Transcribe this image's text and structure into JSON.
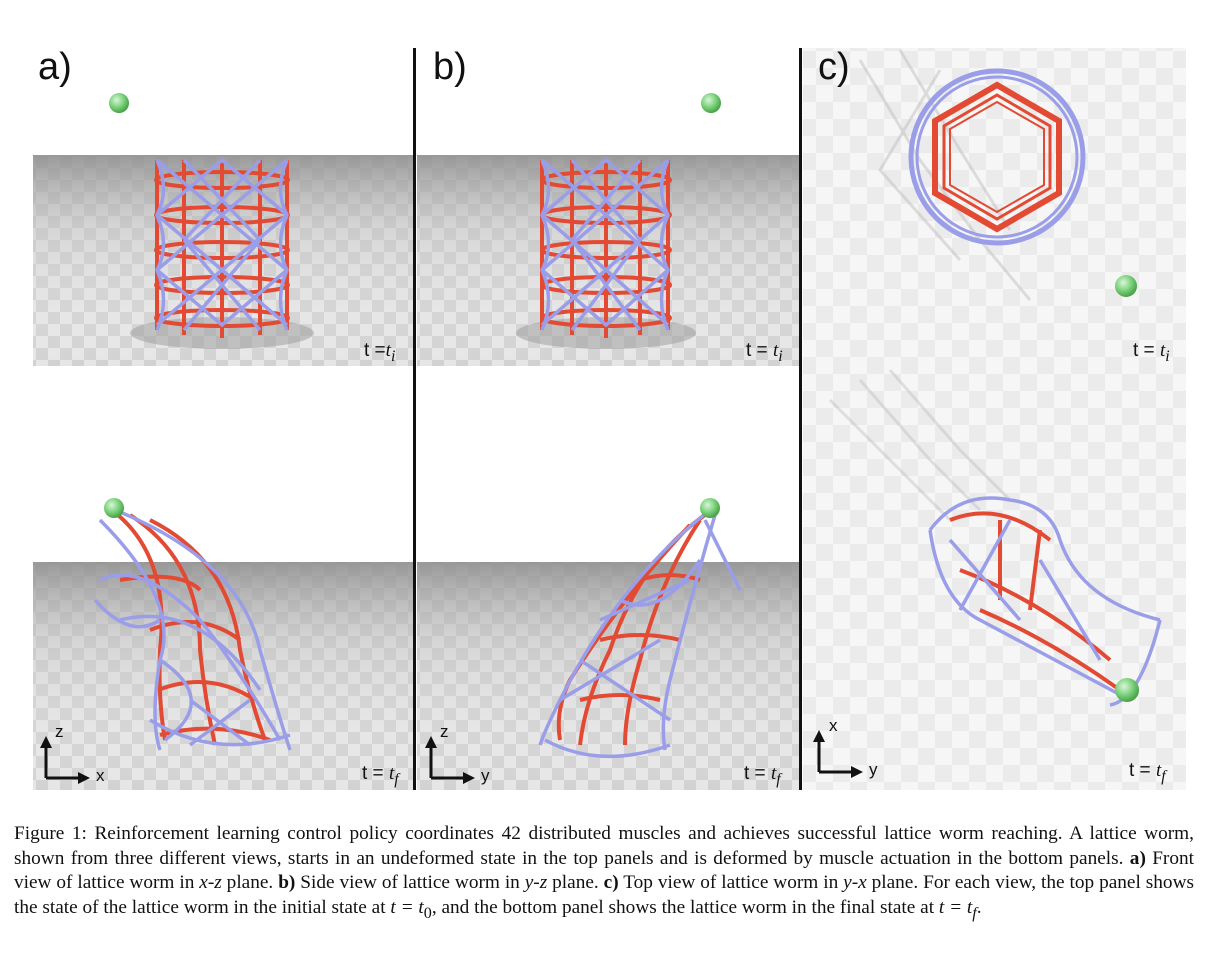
{
  "panels": [
    {
      "label": "a)",
      "top_state": "t =",
      "top_sub": "i",
      "bottom_state": "t = ",
      "bottom_sub": "f",
      "axis_h": "x",
      "axis_v": "z"
    },
    {
      "label": "b)",
      "top_state": "t = ",
      "top_sub": "i",
      "bottom_state": "t = ",
      "bottom_sub": "f",
      "axis_h": "y",
      "axis_v": "z"
    },
    {
      "label": "c)",
      "top_state": "t = ",
      "top_sub": "i",
      "bottom_state": "t = ",
      "bottom_sub": "f",
      "axis_h": "y",
      "axis_v": "x"
    }
  ],
  "caption": {
    "figure_label": "Figure 1:",
    "sentence1": " Reinforcement learning control policy coordinates 42 distributed muscles and achieves successful lattice worm reaching. A lattice worm, shown from three different views, starts in an undeformed state in the top panels and is deformed by muscle actuation in the bottom panels. ",
    "a_label": "a)",
    "a_text": " Front view of lattice worm in ",
    "a_plane": "x-z",
    "a_end": " plane. ",
    "b_label": "b)",
    "b_text": " Side view of lattice worm in ",
    "b_plane": "y-z",
    "b_end": " plane. ",
    "c_label": "c)",
    "c_text": " Top view of lattice worm in ",
    "c_plane": "y-x",
    "c_end": " plane. For each view, the top panel shows the state of the lattice worm in the initial state at ",
    "t0": "t = t",
    "t0_sub": "0",
    "mid": ", and the bottom panel shows the lattice worm in the final state at ",
    "tf": "t = t",
    "tf_sub": "f",
    "end": "."
  },
  "colors": {
    "muscle": "#e24a33",
    "lattice": "#9a9ee8",
    "target": "#7fd47f",
    "floor": "#cfcfcf"
  }
}
